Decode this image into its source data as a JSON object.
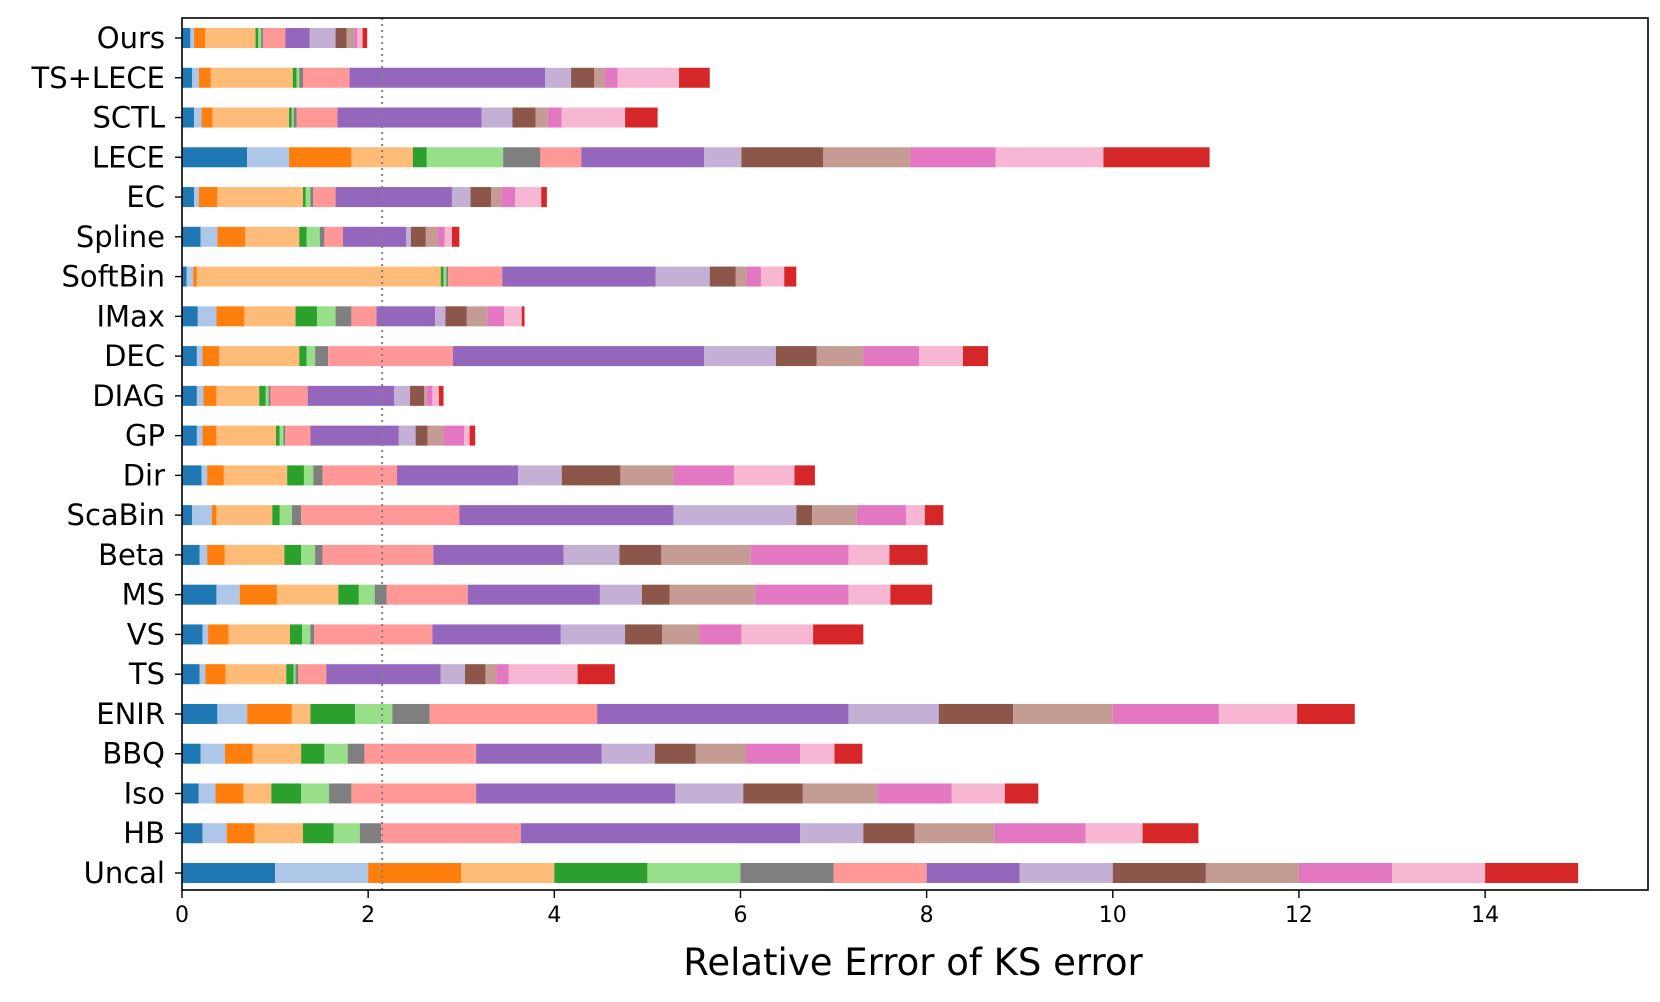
{
  "chart_data": {
    "type": "bar",
    "orientation": "horizontal",
    "stacked": true,
    "xlabel": "Relative Error of KS error",
    "ylabel": "",
    "xlim": [
      0,
      15.75
    ],
    "xticks": [
      0,
      2,
      4,
      6,
      8,
      10,
      12,
      14
    ],
    "reference_line": {
      "x": 2.15,
      "style": "dotted",
      "color": "#808080"
    },
    "grid": false,
    "legend": "none",
    "categories": [
      "Uncal",
      "HB",
      "Iso",
      "BBQ",
      "ENIR",
      "TS",
      "VS",
      "MS",
      "Beta",
      "ScaBin",
      "Dir",
      "GP",
      "DIAG",
      "DEC",
      "IMax",
      "SoftBin",
      "Spline",
      "EC",
      "LECE",
      "SCTL",
      "TS+LECE",
      "Ours"
    ],
    "segment_colors": [
      "#1f77b4",
      "#aec7e8",
      "#ff7f0e",
      "#ffbb78",
      "#2ca02c",
      "#98df8a",
      "#7f7f7f",
      "#ff9896",
      "#9467bd",
      "#c5b0d5",
      "#8c564b",
      "#c49c94",
      "#e377c2",
      "#f7b6d2",
      "#d62728"
    ],
    "series": [
      {
        "values": [
          1.0,
          0.22,
          0.18,
          0.2,
          0.38,
          0.19,
          0.22,
          0.37,
          0.19,
          0.11,
          0.21,
          0.16,
          0.16,
          0.16,
          0.17,
          0.05,
          0.2,
          0.13,
          0.7,
          0.13,
          0.11,
          0.09
        ]
      },
      {
        "values": [
          1.0,
          0.26,
          0.18,
          0.26,
          0.32,
          0.06,
          0.06,
          0.25,
          0.08,
          0.21,
          0.06,
          0.06,
          0.07,
          0.06,
          0.2,
          0.07,
          0.18,
          0.05,
          0.45,
          0.08,
          0.07,
          0.04
        ]
      },
      {
        "values": [
          1.0,
          0.3,
          0.3,
          0.3,
          0.48,
          0.22,
          0.22,
          0.4,
          0.19,
          0.05,
          0.18,
          0.15,
          0.14,
          0.18,
          0.3,
          0.04,
          0.3,
          0.2,
          0.67,
          0.12,
          0.13,
          0.12
        ]
      },
      {
        "values": [
          1.0,
          0.52,
          0.3,
          0.52,
          0.2,
          0.65,
          0.66,
          0.66,
          0.64,
          0.6,
          0.68,
          0.64,
          0.46,
          0.86,
          0.55,
          2.62,
          0.58,
          0.92,
          0.66,
          0.82,
          0.88,
          0.54
        ]
      },
      {
        "values": [
          1.0,
          0.33,
          0.32,
          0.25,
          0.48,
          0.08,
          0.13,
          0.22,
          0.18,
          0.08,
          0.18,
          0.04,
          0.07,
          0.08,
          0.23,
          0.03,
          0.08,
          0.03,
          0.15,
          0.03,
          0.04,
          0.03
        ]
      },
      {
        "values": [
          1.0,
          0.28,
          0.3,
          0.25,
          0.4,
          0.02,
          0.09,
          0.17,
          0.15,
          0.13,
          0.1,
          0.04,
          0.03,
          0.09,
          0.2,
          0.03,
          0.14,
          0.05,
          0.82,
          0.02,
          0.03,
          0.03
        ]
      },
      {
        "values": [
          1.0,
          0.23,
          0.24,
          0.18,
          0.4,
          0.03,
          0.04,
          0.13,
          0.08,
          0.1,
          0.1,
          0.02,
          0.02,
          0.14,
          0.17,
          0.02,
          0.05,
          0.03,
          0.4,
          0.03,
          0.04,
          0.02
        ]
      },
      {
        "values": [
          1.0,
          1.5,
          1.34,
          1.2,
          1.8,
          0.3,
          1.27,
          0.87,
          1.19,
          1.7,
          0.8,
          0.27,
          0.4,
          1.34,
          0.27,
          0.58,
          0.2,
          0.24,
          0.44,
          0.44,
          0.5,
          0.24
        ]
      },
      {
        "values": [
          1.0,
          3.0,
          2.14,
          1.35,
          2.7,
          1.23,
          1.38,
          1.42,
          1.4,
          2.3,
          1.3,
          0.95,
          0.93,
          2.7,
          0.63,
          1.65,
          0.68,
          1.25,
          1.32,
          1.55,
          2.1,
          0.26
        ]
      },
      {
        "values": [
          1.0,
          0.68,
          0.73,
          0.57,
          0.97,
          0.26,
          0.69,
          0.45,
          0.6,
          1.32,
          0.47,
          0.18,
          0.17,
          0.77,
          0.11,
          0.58,
          0.05,
          0.2,
          0.4,
          0.33,
          0.28,
          0.28
        ]
      },
      {
        "values": [
          1.0,
          0.55,
          0.64,
          0.44,
          0.8,
          0.22,
          0.4,
          0.3,
          0.45,
          0.17,
          0.63,
          0.13,
          0.15,
          0.44,
          0.23,
          0.28,
          0.16,
          0.22,
          0.88,
          0.25,
          0.25,
          0.12
        ]
      },
      {
        "values": [
          1.0,
          0.86,
          0.8,
          0.54,
          1.07,
          0.12,
          0.4,
          0.92,
          0.96,
          0.48,
          0.57,
          0.17,
          0.03,
          0.5,
          0.22,
          0.12,
          0.13,
          0.11,
          0.93,
          0.13,
          0.11,
          0.08
        ]
      },
      {
        "values": [
          1.0,
          0.98,
          0.8,
          0.58,
          1.14,
          0.13,
          0.45,
          1.0,
          1.05,
          0.53,
          0.65,
          0.22,
          0.06,
          0.6,
          0.18,
          0.15,
          0.07,
          0.15,
          0.92,
          0.15,
          0.14,
          0.03
        ]
      },
      {
        "values": [
          1.0,
          0.61,
          0.57,
          0.37,
          0.84,
          0.74,
          0.77,
          0.45,
          0.44,
          0.2,
          0.65,
          0.06,
          0.07,
          0.47,
          0.19,
          0.25,
          0.08,
          0.28,
          1.16,
          0.68,
          0.66,
          0.06
        ]
      },
      {
        "values": [
          1.0,
          0.6,
          0.36,
          0.3,
          0.62,
          0.4,
          0.54,
          0.45,
          0.41,
          0.2,
          0.22,
          0.06,
          0.05,
          0.27,
          0.03,
          0.13,
          0.08,
          0.06,
          1.14,
          0.35,
          0.33,
          0.05
        ]
      }
    ]
  }
}
